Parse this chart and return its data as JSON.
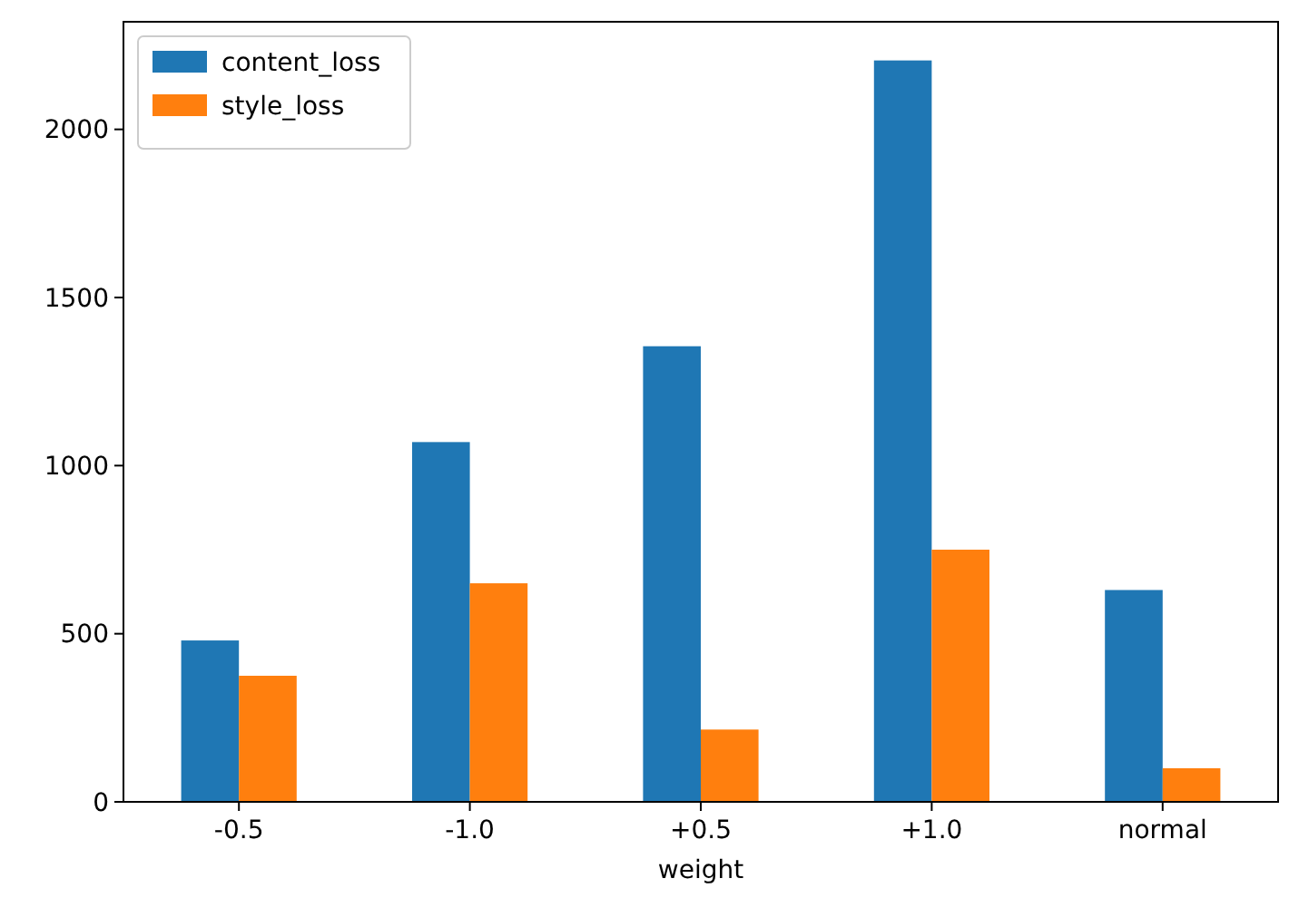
{
  "chart_data": {
    "type": "bar",
    "xlabel": "weight",
    "categories": [
      "-0.5",
      "-1.0",
      "+0.5",
      "+1.0",
      "normal"
    ],
    "series": [
      {
        "name": "content_loss",
        "color": "#1f77b4",
        "values": [
          480,
          1070,
          1355,
          2205,
          630
        ]
      },
      {
        "name": "style_loss",
        "color": "#ff7f0e",
        "values": [
          375,
          650,
          215,
          750,
          100
        ]
      }
    ],
    "ylim": [
      0,
      2320
    ],
    "yticks": [
      0,
      500,
      1000,
      1500,
      2000
    ],
    "grid": false,
    "legend": "top left"
  }
}
